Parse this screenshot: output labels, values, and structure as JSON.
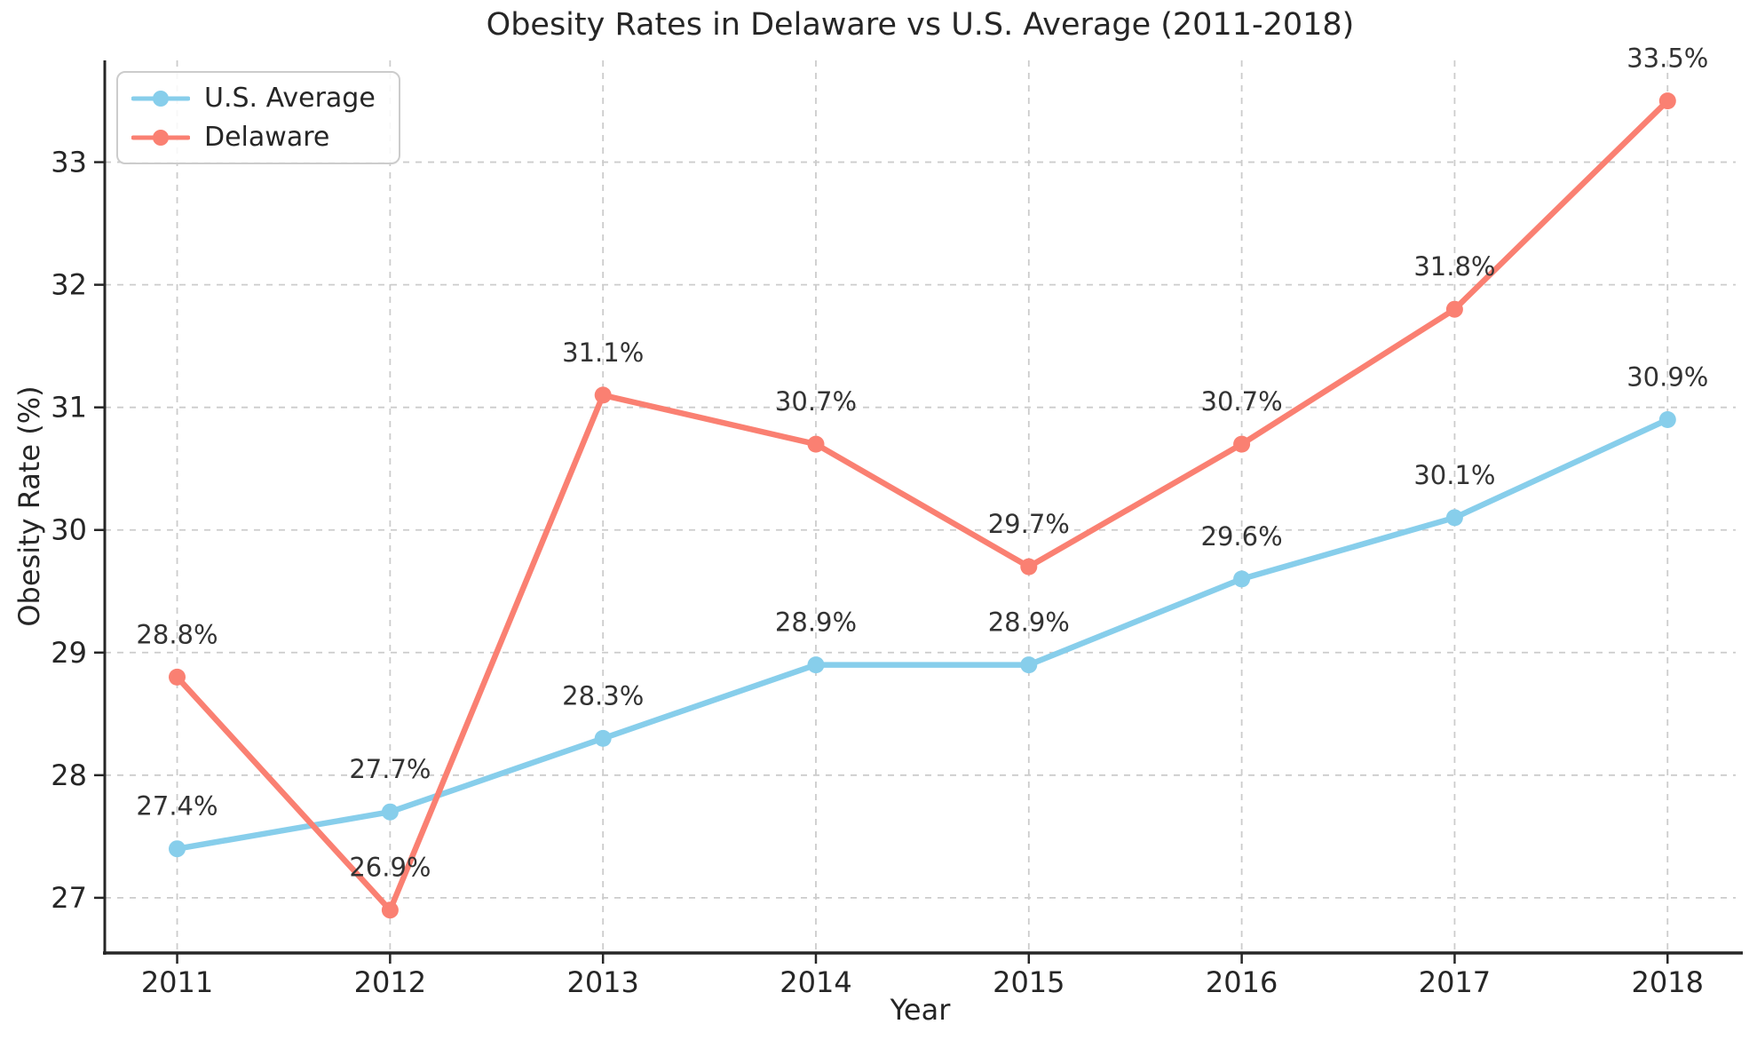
{
  "chart_data": {
    "type": "line",
    "title": "Obesity Rates in Delaware vs U.S. Average (2011-2018)",
    "xlabel": "Year",
    "ylabel": "Obesity Rate (%)",
    "x": [
      2011,
      2012,
      2013,
      2014,
      2015,
      2016,
      2017,
      2018
    ],
    "xticks": [
      2011,
      2012,
      2013,
      2014,
      2015,
      2016,
      2017,
      2018
    ],
    "yticks": [
      27,
      28,
      29,
      30,
      31,
      32,
      33
    ],
    "xlim": [
      2010.66,
      2018.32
    ],
    "ylim": [
      26.55,
      33.83
    ],
    "grid": true,
    "legend_position": "upper-left",
    "point_labels": true,
    "series": [
      {
        "name": "U.S. Average",
        "color": "#87CEEB",
        "values": [
          27.4,
          27.7,
          28.3,
          28.9,
          28.9,
          29.6,
          30.1,
          30.9
        ],
        "labels": [
          "27.4%",
          "27.7%",
          "28.3%",
          "28.9%",
          "28.9%",
          "29.6%",
          "30.1%",
          "30.9%"
        ]
      },
      {
        "name": "Delaware",
        "color": "#FA8072",
        "values": [
          28.8,
          26.9,
          31.1,
          30.7,
          29.7,
          30.7,
          31.8,
          33.5
        ],
        "labels": [
          "28.8%",
          "26.9%",
          "31.1%",
          "30.7%",
          "29.7%",
          "30.7%",
          "31.8%",
          "33.5%"
        ]
      }
    ]
  },
  "style_colors": {
    "background": "#ffffff",
    "grid": "#cccccc",
    "spine": "#262626",
    "text": "#262626",
    "annotation": "#333333",
    "legend_border": "#cccccc"
  }
}
